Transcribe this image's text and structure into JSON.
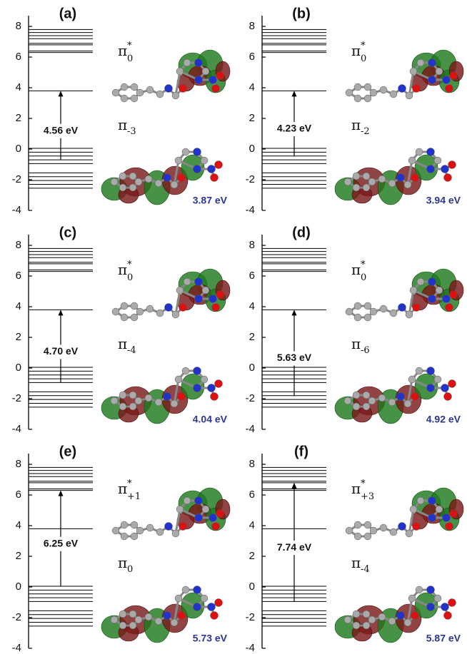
{
  "chart_data": [
    {
      "type": "energy-levels",
      "label": "(a)",
      "ylim": [
        -4,
        8.7
      ],
      "yticks": [
        -4,
        -2,
        0,
        2,
        4,
        6,
        8
      ],
      "values": [
        7.8,
        7.6,
        7.4,
        7.2,
        6.9,
        6.8,
        6.4,
        6.3,
        3.8,
        0.05,
        -0.2,
        -0.45,
        -0.7,
        -0.95,
        -1.55,
        -1.8,
        -2.05,
        -2.3,
        -2.55
      ],
      "transition": [
        -0.7,
        3.8
      ],
      "gap_label": "4.56 eV",
      "upper_orbital": {
        "symbol": "π",
        "sup": "*",
        "sub": "0"
      },
      "lower_orbital": {
        "symbol": "π",
        "sub": "-3"
      },
      "excitation_label": "3.87 eV"
    },
    {
      "type": "energy-levels",
      "label": "(b)",
      "ylim": [
        -4,
        8.7
      ],
      "yticks": [
        -4,
        -2,
        0,
        2,
        4,
        6,
        8
      ],
      "values": [
        7.8,
        7.6,
        7.4,
        7.2,
        6.9,
        6.8,
        6.4,
        6.3,
        3.8,
        0.05,
        -0.2,
        -0.45,
        -0.7,
        -0.95,
        -1.55,
        -1.8,
        -2.05,
        -2.3,
        -2.55
      ],
      "transition": [
        -0.45,
        3.8
      ],
      "gap_label": "4.23 eV",
      "upper_orbital": {
        "symbol": "π",
        "sup": "*",
        "sub": "0"
      },
      "lower_orbital": {
        "symbol": "π",
        "sub": "-2"
      },
      "excitation_label": "3.94 eV"
    },
    {
      "type": "energy-levels",
      "label": "(c)",
      "ylim": [
        -4,
        8.7
      ],
      "yticks": [
        -4,
        -2,
        0,
        2,
        4,
        6,
        8
      ],
      "values": [
        7.8,
        7.6,
        7.4,
        7.2,
        6.9,
        6.8,
        6.4,
        6.3,
        3.8,
        0.05,
        -0.2,
        -0.45,
        -0.7,
        -0.95,
        -1.55,
        -1.8,
        -2.05,
        -2.3,
        -2.55
      ],
      "transition": [
        -0.95,
        3.8
      ],
      "gap_label": "4.70 eV",
      "upper_orbital": {
        "symbol": "π",
        "sup": "*",
        "sub": "0"
      },
      "lower_orbital": {
        "symbol": "π",
        "sub": "-4"
      },
      "excitation_label": "4.04 eV"
    },
    {
      "type": "energy-levels",
      "label": "(d)",
      "ylim": [
        -4,
        8.7
      ],
      "yticks": [
        -4,
        -2,
        0,
        2,
        4,
        6,
        8
      ],
      "values": [
        7.8,
        7.6,
        7.4,
        7.2,
        6.9,
        6.8,
        6.4,
        6.3,
        3.8,
        0.05,
        -0.2,
        -0.45,
        -0.7,
        -0.95,
        -1.55,
        -1.8,
        -2.05,
        -2.3,
        -2.55
      ],
      "transition": [
        -1.8,
        3.8
      ],
      "gap_label": "5.63 eV",
      "upper_orbital": {
        "symbol": "π",
        "sup": "*",
        "sub": "0"
      },
      "lower_orbital": {
        "symbol": "π",
        "sub": "-6"
      },
      "excitation_label": "4.92 eV"
    },
    {
      "type": "energy-levels",
      "label": "(e)",
      "ylim": [
        -4,
        8.7
      ],
      "yticks": [
        -4,
        -2,
        0,
        2,
        4,
        6,
        8
      ],
      "values": [
        7.8,
        7.6,
        7.4,
        7.2,
        6.9,
        6.8,
        6.4,
        6.3,
        3.8,
        0.05,
        -0.2,
        -0.45,
        -0.7,
        -0.95,
        -1.55,
        -1.8,
        -2.05,
        -2.3,
        -2.55
      ],
      "transition": [
        0.05,
        6.3
      ],
      "gap_label": "6.25 eV",
      "upper_orbital": {
        "symbol": "π",
        "sup": "*",
        "sub": "+1"
      },
      "lower_orbital": {
        "symbol": "π",
        "sub": "0"
      },
      "excitation_label": "5.73 eV"
    },
    {
      "type": "energy-levels",
      "label": "(f)",
      "ylim": [
        -4,
        8.7
      ],
      "yticks": [
        -4,
        -2,
        0,
        2,
        4,
        6,
        8
      ],
      "values": [
        7.8,
        7.6,
        7.4,
        7.2,
        6.9,
        6.8,
        6.4,
        6.3,
        3.8,
        0.05,
        -0.2,
        -0.45,
        -0.7,
        -0.95,
        -1.55,
        -1.8,
        -2.05,
        -2.3,
        -2.55
      ],
      "transition": [
        -0.95,
        6.8
      ],
      "gap_label": "7.74 eV",
      "upper_orbital": {
        "symbol": "π",
        "sup": "*",
        "sub": "+3"
      },
      "lower_orbital": {
        "symbol": "π",
        "sub": "-4"
      },
      "excitation_label": "5.87 eV"
    }
  ]
}
